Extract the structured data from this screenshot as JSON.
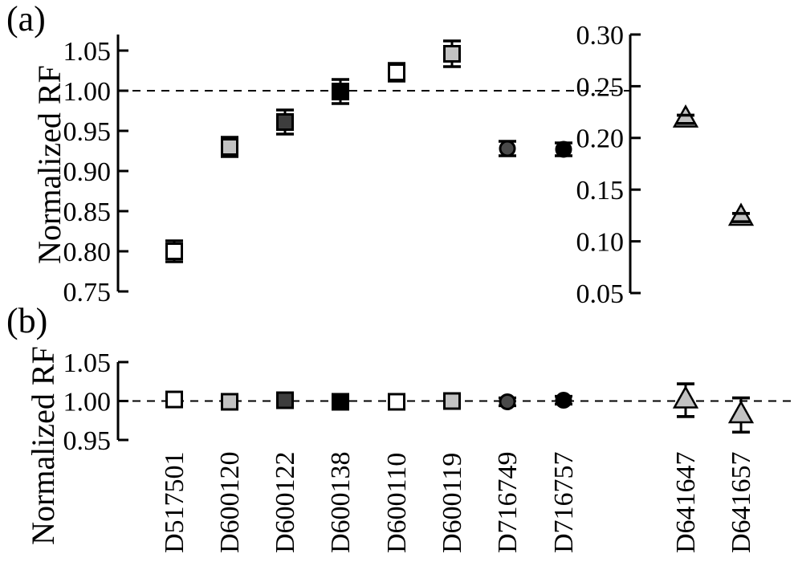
{
  "figure": {
    "panel_a_label": "(a)",
    "panel_b_label": "(b)",
    "background": "#ffffff",
    "axis_color": "#000000"
  },
  "categories": [
    "D517501",
    "D600120",
    "D600122",
    "D600138",
    "D600110",
    "D600119",
    "D716749",
    "D716757",
    "D641647",
    "D641657"
  ],
  "chart_data": [
    {
      "type": "scatter",
      "panel": "a",
      "title": "",
      "xlabel": "",
      "left_axis": {
        "label": "Normalized RF",
        "ticks": [
          "0.75",
          "0.80",
          "0.85",
          "0.90",
          "0.95",
          "1.00",
          "1.05"
        ],
        "range": [
          0.75,
          1.07
        ]
      },
      "right_axis": {
        "ticks": [
          "0.05",
          "0.10",
          "0.15",
          "0.20",
          "0.25",
          "0.30"
        ],
        "range": [
          0.05,
          0.3
        ]
      },
      "reference_line": {
        "value": 1.0,
        "axis": "left",
        "style": "dashed"
      },
      "grid": false,
      "legend": false,
      "points": [
        {
          "category": "D517501",
          "value": 0.8,
          "error": 0.013,
          "axis": "left",
          "marker": "square",
          "fill": "#ffffff"
        },
        {
          "category": "D600120",
          "value": 0.93,
          "error": 0.012,
          "axis": "left",
          "marker": "square",
          "fill": "#c2c2c2"
        },
        {
          "category": "D600122",
          "value": 0.961,
          "error": 0.015,
          "axis": "left",
          "marker": "square",
          "fill": "#3d3d3d"
        },
        {
          "category": "D600138",
          "value": 0.999,
          "error": 0.015,
          "axis": "left",
          "marker": "square",
          "fill": "#000000"
        },
        {
          "category": "D600110",
          "value": 1.023,
          "error": 0.011,
          "axis": "left",
          "marker": "square",
          "fill": "#ffffff"
        },
        {
          "category": "D600119",
          "value": 1.046,
          "error": 0.016,
          "axis": "left",
          "marker": "square",
          "fill": "#c2c2c2"
        },
        {
          "category": "D716749",
          "value": 0.928,
          "error": 0.009,
          "axis": "left",
          "marker": "circle",
          "fill": "#4a4a4a"
        },
        {
          "category": "D716757",
          "value": 0.927,
          "error": 0.008,
          "axis": "left",
          "marker": "circle",
          "fill": "#000000"
        },
        {
          "category": "D641647",
          "value": 0.218,
          "error": 0.004,
          "axis": "right",
          "marker": "triangle",
          "fill": "#c2c2c2"
        },
        {
          "category": "D641657",
          "value": 0.123,
          "error": 0.004,
          "axis": "right",
          "marker": "triangle",
          "fill": "#c2c2c2"
        }
      ]
    },
    {
      "type": "scatter",
      "panel": "b",
      "title": "",
      "xlabel": "",
      "left_axis": {
        "label": "Normalized RF",
        "ticks": [
          "0.95",
          "1.00",
          "1.05"
        ],
        "range": [
          0.95,
          1.05
        ]
      },
      "reference_line": {
        "value": 1.0,
        "axis": "left",
        "style": "dashed"
      },
      "grid": false,
      "legend": false,
      "points": [
        {
          "category": "D517501",
          "value": 1.002,
          "error": 0.008,
          "axis": "left",
          "marker": "square",
          "fill": "#ffffff"
        },
        {
          "category": "D600120",
          "value": 0.999,
          "error": 0.008,
          "axis": "left",
          "marker": "square",
          "fill": "#c2c2c2"
        },
        {
          "category": "D600122",
          "value": 1.001,
          "error": 0.006,
          "axis": "left",
          "marker": "square",
          "fill": "#3d3d3d"
        },
        {
          "category": "D600138",
          "value": 0.999,
          "error": 0.005,
          "axis": "left",
          "marker": "square",
          "fill": "#000000"
        },
        {
          "category": "D600110",
          "value": 0.999,
          "error": 0.005,
          "axis": "left",
          "marker": "square",
          "fill": "#ffffff"
        },
        {
          "category": "D600119",
          "value": 1.0,
          "error": 0.007,
          "axis": "left",
          "marker": "square",
          "fill": "#c2c2c2"
        },
        {
          "category": "D716749",
          "value": 0.999,
          "error": 0.005,
          "axis": "left",
          "marker": "circle",
          "fill": "#4a4a4a"
        },
        {
          "category": "D716757",
          "value": 1.001,
          "error": 0.005,
          "axis": "left",
          "marker": "circle",
          "fill": "#000000"
        },
        {
          "category": "D641647",
          "value": 1.001,
          "error": 0.021,
          "axis": "left",
          "marker": "triangle",
          "fill": "#c2c2c2"
        },
        {
          "category": "D641657",
          "value": 0.982,
          "error": 0.022,
          "axis": "left",
          "marker": "triangle",
          "fill": "#c2c2c2"
        }
      ]
    }
  ]
}
